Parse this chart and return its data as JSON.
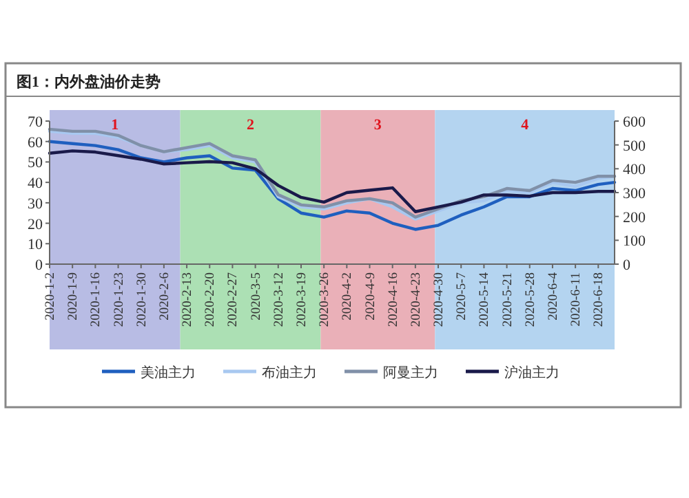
{
  "chart_data": {
    "type": "line",
    "title": "图1：内外盘油价走势",
    "x": [
      "2020-01-02",
      "2020-01-09",
      "2020-01-16",
      "2020-01-23",
      "2020-01-30",
      "2020-02-06",
      "2020-02-13",
      "2020-02-20",
      "2020-02-27",
      "2020-03-05",
      "2020-03-12",
      "2020-03-19",
      "2020-03-26",
      "2020-04-02",
      "2020-04-09",
      "2020-04-16",
      "2020-04-23",
      "2020-04-30",
      "2020-05-07",
      "2020-05-14",
      "2020-05-21",
      "2020-05-28",
      "2020-06-04",
      "2020-06-11",
      "2020-06-18",
      "2020-06-23"
    ],
    "xlim": [
      "2020-01-02",
      "2020-06-23"
    ],
    "xticks": [
      {
        "value": "2020-01-02",
        "label": "2020-1-2"
      },
      {
        "value": "2020-01-09",
        "label": "2020-1-9"
      },
      {
        "value": "2020-01-16",
        "label": "2020-1-16"
      },
      {
        "value": "2020-01-23",
        "label": "2020-1-23"
      },
      {
        "value": "2020-01-30",
        "label": "2020-1-30"
      },
      {
        "value": "2020-02-06",
        "label": "2020-2-6"
      },
      {
        "value": "2020-02-13",
        "label": "2020-2-13"
      },
      {
        "value": "2020-02-20",
        "label": "2020-2-20"
      },
      {
        "value": "2020-02-27",
        "label": "2020-2-27"
      },
      {
        "value": "2020-03-05",
        "label": "2020-3-5"
      },
      {
        "value": "2020-03-12",
        "label": "2020-3-12"
      },
      {
        "value": "2020-03-19",
        "label": "2020-3-19"
      },
      {
        "value": "2020-03-26",
        "label": "2020-3-26"
      },
      {
        "value": "2020-04-02",
        "label": "2020-4-2"
      },
      {
        "value": "2020-04-09",
        "label": "2020-4-9"
      },
      {
        "value": "2020-04-16",
        "label": "2020-4-16"
      },
      {
        "value": "2020-04-23",
        "label": "2020-4-23"
      },
      {
        "value": "2020-04-30",
        "label": "2020-4-30"
      },
      {
        "value": "2020-05-07",
        "label": "2020-5-7"
      },
      {
        "value": "2020-05-14",
        "label": "2020-5-14"
      },
      {
        "value": "2020-05-21",
        "label": "2020-5-21"
      },
      {
        "value": "2020-05-28",
        "label": "2020-5-28"
      },
      {
        "value": "2020-06-04",
        "label": "2020-6-4"
      },
      {
        "value": "2020-06-11",
        "label": "2020-6-11"
      },
      {
        "value": "2020-06-18",
        "label": "2020-6-18"
      }
    ],
    "ylim": [
      0,
      70
    ],
    "yticks": [
      0,
      10,
      20,
      30,
      40,
      50,
      60,
      70
    ],
    "y2lim": [
      0,
      600
    ],
    "y2ticks": [
      0,
      100,
      200,
      300,
      400,
      500,
      600
    ],
    "series": [
      {
        "name": "美油主力",
        "color": "#1f5fbf",
        "values": [
          60,
          59,
          58,
          56,
          52,
          50,
          52,
          53,
          47,
          46,
          32,
          25,
          23,
          26,
          25,
          20,
          17,
          19,
          24,
          28,
          33,
          33,
          37,
          36,
          39,
          40
        ]
      },
      {
        "name": "布油主力",
        "color": "#a8c8f0",
        "values": [
          65,
          64,
          64,
          62,
          58,
          55,
          56,
          58,
          52,
          50,
          33,
          28,
          27,
          30,
          32,
          28,
          22,
          26,
          30,
          31,
          36,
          35,
          40,
          38,
          42,
          43
        ]
      },
      {
        "name": "阿曼主力",
        "color": "#8090a8",
        "values": [
          66,
          65,
          65,
          63,
          58,
          55,
          57,
          59,
          53,
          51,
          34,
          29,
          28,
          31,
          32,
          30,
          23,
          27,
          31,
          33,
          37,
          36,
          41,
          40,
          43,
          43
        ]
      },
      {
        "name": "沪油主力",
        "color": "#1a1a4a",
        "axis": "y2",
        "values": [
          465,
          475,
          470,
          455,
          440,
          420,
          425,
          430,
          425,
          400,
          330,
          280,
          260,
          300,
          310,
          320,
          220,
          240,
          260,
          290,
          290,
          285,
          300,
          300,
          305,
          305
        ]
      }
    ],
    "bands": [
      {
        "axis": "x",
        "from": "2020-01-02",
        "to": "2020-02-11",
        "label": "1",
        "color": "#b8bce4"
      },
      {
        "axis": "x",
        "from": "2020-02-11",
        "to": "2020-03-25",
        "label": "2",
        "color": "#ace0b4"
      },
      {
        "axis": "x",
        "from": "2020-03-25",
        "to": "2020-04-29",
        "label": "3",
        "color": "#eab0b8"
      },
      {
        "axis": "x",
        "from": "2020-04-29",
        "to": "2020-06-23",
        "label": "4",
        "color": "#b4d4f0"
      }
    ],
    "legend": "bottom",
    "grid": false,
    "marker": "none",
    "line_style": "solid"
  }
}
